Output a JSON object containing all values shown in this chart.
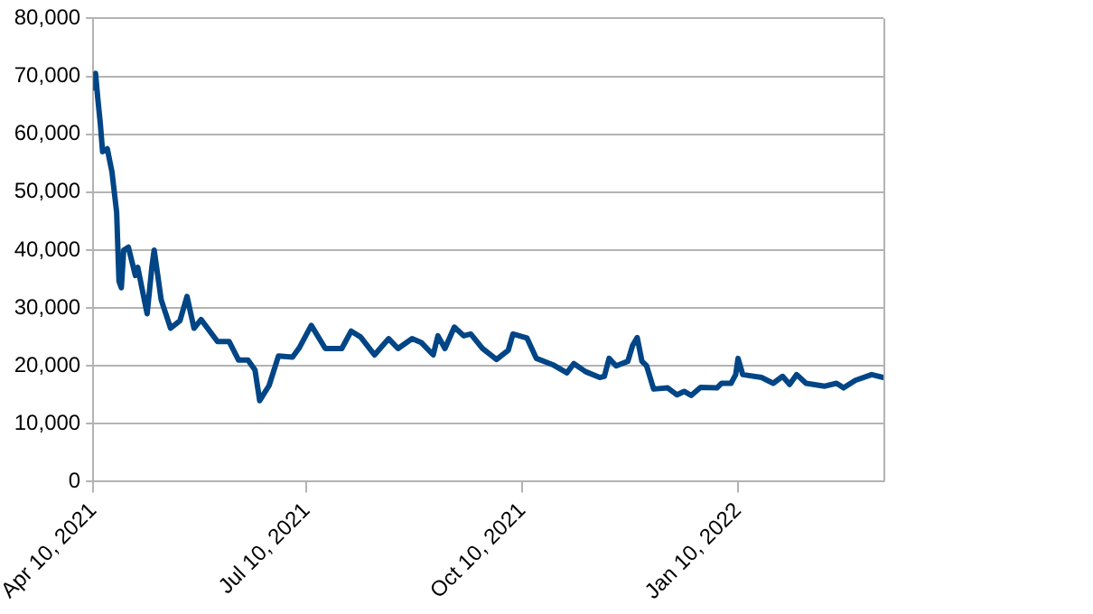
{
  "chart_data": {
    "type": "line",
    "x": [
      "2021-04-10",
      "2021-04-11",
      "2021-04-12",
      "2021-04-13",
      "2021-04-14",
      "2021-04-16",
      "2021-04-18",
      "2021-04-20",
      "2021-04-21",
      "2021-04-22",
      "2021-04-23",
      "2021-04-25",
      "2021-04-28",
      "2021-04-29",
      "2021-05-03",
      "2021-05-05",
      "2021-05-06",
      "2021-05-09",
      "2021-05-13",
      "2021-05-17",
      "2021-05-20",
      "2021-05-23",
      "2021-05-26",
      "2021-06-02",
      "2021-06-07",
      "2021-06-11",
      "2021-06-15",
      "2021-06-18",
      "2021-06-20",
      "2021-06-24",
      "2021-06-28",
      "2021-07-04",
      "2021-07-07",
      "2021-07-12",
      "2021-07-18",
      "2021-07-25",
      "2021-07-29",
      "2021-08-02",
      "2021-08-08",
      "2021-08-14",
      "2021-08-18",
      "2021-08-24",
      "2021-08-28",
      "2021-09-02",
      "2021-09-04",
      "2021-09-07",
      "2021-09-11",
      "2021-09-15",
      "2021-09-18",
      "2021-09-23",
      "2021-09-29",
      "2021-10-04",
      "2021-10-06",
      "2021-10-12",
      "2021-10-16",
      "2021-10-23",
      "2021-10-29",
      "2021-11-01",
      "2021-11-06",
      "2021-11-12",
      "2021-11-14",
      "2021-11-16",
      "2021-11-19",
      "2021-11-24",
      "2021-11-26",
      "2021-11-28",
      "2021-11-30",
      "2021-12-02",
      "2021-12-05",
      "2021-12-11",
      "2021-12-15",
      "2021-12-18",
      "2021-12-21",
      "2021-12-25",
      "2022-01-01",
      "2022-01-03",
      "2022-01-07",
      "2022-01-09",
      "2022-01-10",
      "2022-01-12",
      "2022-01-20",
      "2022-01-25",
      "2022-01-29",
      "2022-02-01",
      "2022-02-04",
      "2022-02-08",
      "2022-02-16",
      "2022-02-21",
      "2022-02-24",
      "2022-03-01",
      "2022-03-08",
      "2022-03-13"
    ],
    "series": [
      {
        "color": "#004586",
        "values": [
          68000,
          70500,
          66000,
          62000,
          57000,
          57500,
          53500,
          46500,
          34600,
          33500,
          40000,
          40500,
          35600,
          37000,
          29000,
          37000,
          40000,
          31400,
          26500,
          27800,
          32000,
          26500,
          28000,
          24200,
          24200,
          21000,
          21000,
          19300,
          14000,
          16600,
          21700,
          21500,
          23200,
          27000,
          23000,
          23000,
          26000,
          25000,
          21900,
          24700,
          23000,
          24700,
          24000,
          21900,
          25200,
          23000,
          26700,
          25200,
          25500,
          23000,
          21100,
          22700,
          25500,
          24800,
          21300,
          20200,
          18800,
          20400,
          19000,
          18000,
          18200,
          21300,
          20000,
          20800,
          23500,
          24900,
          20800,
          20000,
          16000,
          16200,
          15000,
          15600,
          14900,
          16300,
          16200,
          17000,
          17000,
          18500,
          21300,
          18500,
          18000,
          17000,
          18200,
          16800,
          18500,
          17000,
          16500,
          17000,
          16200,
          17500,
          18500,
          18000
        ]
      }
    ],
    "xlim": [
      "2021-04-10",
      "2022-03-13"
    ],
    "xticks": [
      {
        "value": "2021-04-10",
        "label": "Apr 10, 2021"
      },
      {
        "value": "2021-07-10",
        "label": "Jul 10, 2021"
      },
      {
        "value": "2021-10-10",
        "label": "Oct 10, 2021"
      },
      {
        "value": "2022-01-10",
        "label": "Jan 10, 2022"
      }
    ],
    "ylim": [
      0,
      80000
    ],
    "yticks": [
      0,
      {
        "value": 10000,
        "label": "10,000"
      },
      {
        "value": 20000,
        "label": "20,000"
      },
      {
        "value": 30000,
        "label": "30,000"
      },
      {
        "value": 40000,
        "label": "40,000"
      },
      {
        "value": 50000,
        "label": "50,000"
      },
      {
        "value": 60000,
        "label": "60,000"
      },
      {
        "value": 70000,
        "label": "70,000"
      },
      {
        "value": 80000,
        "label": "80,000"
      }
    ],
    "grid": "y",
    "legend": false,
    "marker": "none",
    "line_style": "solid"
  }
}
